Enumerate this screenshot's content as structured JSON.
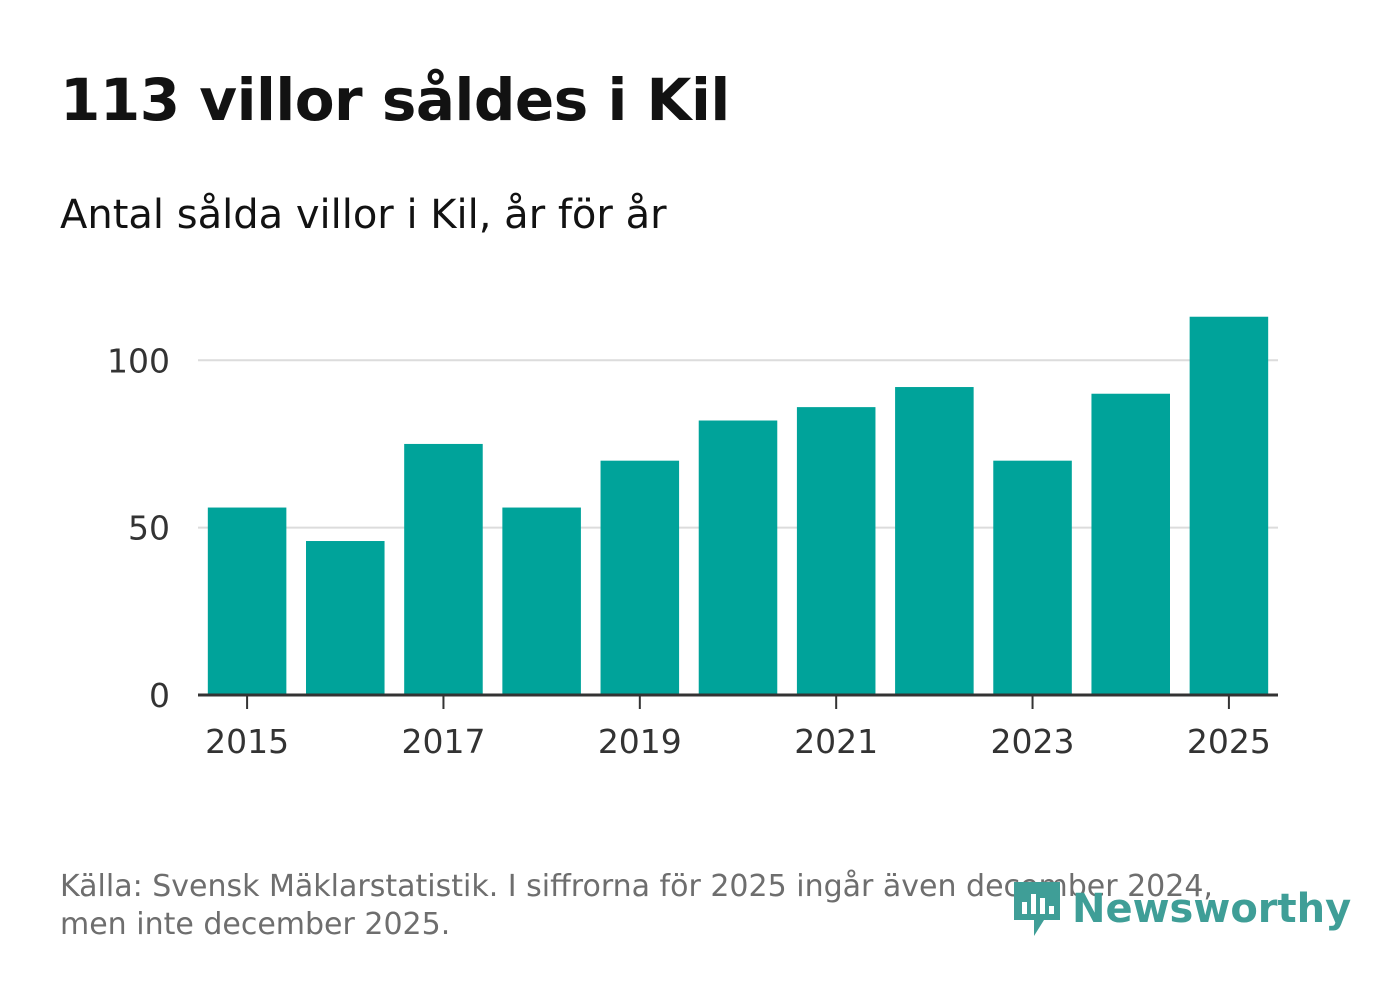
{
  "header": {
    "title": "113 villor såldes i Kil",
    "subtitle": "Antal sålda villor i Kil, år för år"
  },
  "chart_data": {
    "type": "bar",
    "title": "113 villor såldes i Kil",
    "subtitle": "Antal sålda villor i Kil, år för år",
    "categories": [
      2015,
      2016,
      2017,
      2018,
      2019,
      2020,
      2021,
      2022,
      2023,
      2024,
      2025
    ],
    "values": [
      56,
      46,
      75,
      56,
      70,
      82,
      86,
      92,
      70,
      90,
      113
    ],
    "x_tick_labels": [
      "2015",
      "2017",
      "2019",
      "2021",
      "2023",
      "2025"
    ],
    "y_ticks": [
      0,
      50,
      100
    ],
    "y_tick_labels": [
      "0",
      "50",
      "100"
    ],
    "ylim": [
      0,
      118
    ],
    "xlabel": "",
    "ylabel": "",
    "grid": true,
    "bar_color": "#00a39a"
  },
  "footer": {
    "source": "Källa: Svensk Mäklarstatistik. I siffrorna för 2025 ingår även december 2024, men inte december 2025."
  },
  "logo": {
    "text": "Newsworthy",
    "color": "#3f9e97"
  }
}
